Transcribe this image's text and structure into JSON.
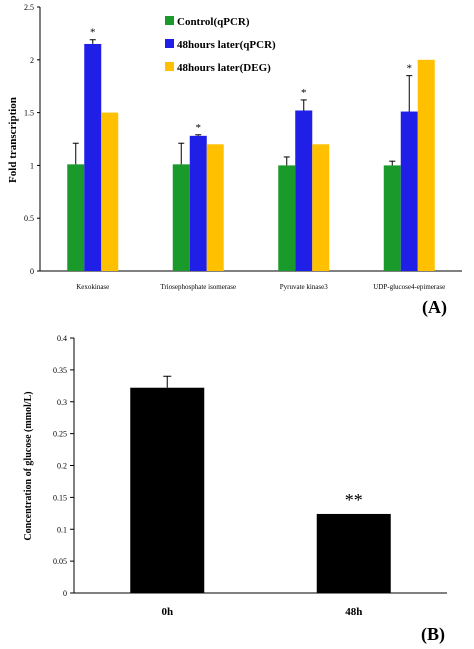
{
  "colors": {
    "control": "#1a9a2a",
    "qpcr48": "#1f1fe8",
    "deg48": "#ffc000",
    "black": "#000000"
  },
  "chart_data": [
    {
      "type": "bar",
      "panel": "(A)",
      "ylabel": "Fold transcription",
      "ylim": [
        0,
        2.5
      ],
      "yticks": [
        "0",
        "0.5",
        "1",
        "1.5",
        "2",
        "2.5"
      ],
      "categories": [
        "Kexokinase",
        "Triosephosphate isomerase",
        "Pyruvate kinase3",
        "UDP-glucose4-epimerase"
      ],
      "legend_position": "top-right",
      "series": [
        {
          "name": "Control(qPCR)",
          "color": "#1a9a2a",
          "values": [
            1.01,
            1.01,
            1.0,
            1.0
          ],
          "errors": [
            0.2,
            0.2,
            0.08,
            0.04
          ]
        },
        {
          "name": "48hours later(qPCR)",
          "color": "#1f1fe8",
          "values": [
            2.15,
            1.28,
            1.52,
            1.51
          ],
          "errors": [
            0.04,
            0.01,
            0.1,
            0.34
          ]
        },
        {
          "name": "48hours later(DEG)",
          "color": "#ffc000",
          "values": [
            1.5,
            1.2,
            1.2,
            2.0
          ],
          "errors": [
            0,
            0,
            0,
            0
          ]
        }
      ],
      "significance": [
        "*",
        "*",
        "*",
        "*"
      ]
    },
    {
      "type": "bar",
      "panel": "(B)",
      "ylabel": "Concentration of glucose (mmol/L)",
      "ylim": [
        0,
        0.4
      ],
      "yticks": [
        "0",
        "0.05",
        "0.1",
        "0.15",
        "0.2",
        "0.25",
        "0.3",
        "0.35",
        "0.4"
      ],
      "categories": [
        "0h",
        "48h"
      ],
      "values": [
        0.322,
        0.124
      ],
      "errors": [
        0.018,
        0
      ],
      "significance": [
        "",
        "**"
      ]
    }
  ]
}
